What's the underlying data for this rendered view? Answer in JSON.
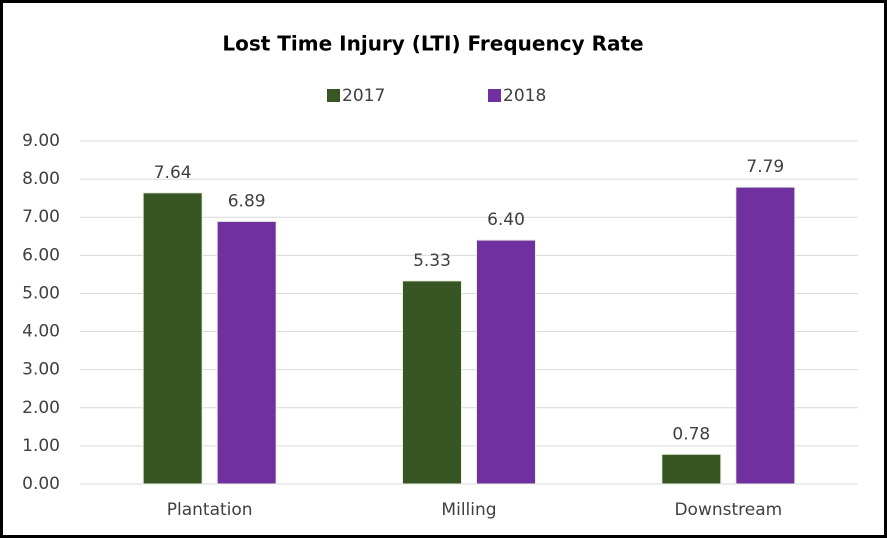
{
  "chart_data": {
    "type": "bar",
    "title": "Lost Time Injury (LTI) Frequency Rate",
    "categories": [
      "Plantation",
      "Milling",
      "Downstream"
    ],
    "series": [
      {
        "name": "2017",
        "color": "#375623",
        "values": [
          7.64,
          5.33,
          0.78
        ],
        "value_labels": [
          "7.64",
          "5.33",
          "0.78"
        ]
      },
      {
        "name": "2018",
        "color": "#7030a0",
        "values": [
          6.89,
          6.4,
          7.79
        ],
        "value_labels": [
          "6.89",
          "6.40",
          "7.79"
        ]
      }
    ],
    "ylim": [
      0,
      9
    ],
    "yticks": [
      {
        "value": 0,
        "label": "0.00"
      },
      {
        "value": 1,
        "label": "1.00"
      },
      {
        "value": 2,
        "label": "2.00"
      },
      {
        "value": 3,
        "label": "3.00"
      },
      {
        "value": 4,
        "label": "4.00"
      },
      {
        "value": 5,
        "label": "5.00"
      },
      {
        "value": 6,
        "label": "6.00"
      },
      {
        "value": 7,
        "label": "7.00"
      },
      {
        "value": 8,
        "label": "8.00"
      },
      {
        "value": 9,
        "label": "9.00"
      }
    ],
    "grid": true,
    "legend": "top"
  }
}
